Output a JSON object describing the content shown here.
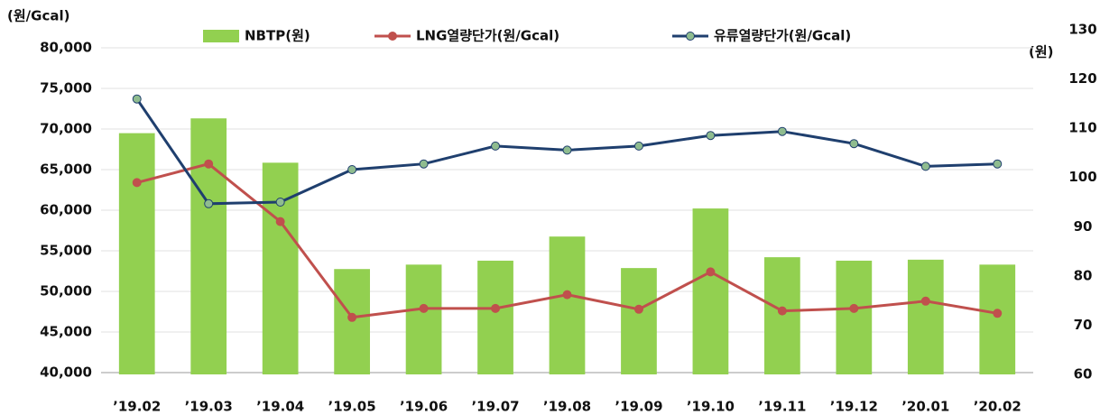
{
  "chart_data": {
    "type": "bar-line",
    "y_label": "(원/Gcal)",
    "y2_label": "(원)",
    "categories": [
      "’19.02",
      "’19.03",
      "’19.04",
      "’19.05",
      "’19.06",
      "’19.07",
      "’19.08",
      "’19.09",
      "’19.10",
      "’19.11",
      "’19.12",
      "’20.01",
      "’20.02"
    ],
    "series": [
      {
        "name": "NBTP(원)",
        "type": "bar",
        "axis": "y2",
        "color": "#92d050",
        "values": [
          109,
          112,
          103,
          81.4,
          82.3,
          83.1,
          88,
          81.6,
          93.7,
          83.8,
          83.1,
          83.3,
          82.3
        ]
      },
      {
        "name": "LNG열량단가(원/Gcal)",
        "type": "line",
        "color": "#c0504d",
        "values": [
          63400,
          65700,
          58600,
          46800,
          47900,
          47900,
          49600,
          47800,
          52400,
          47600,
          47900,
          48800,
          47300
        ]
      },
      {
        "name": "유류열량단가(원/Gcal)",
        "type": "line",
        "color": "#1f3f6e",
        "marker_color": "#8fbc8f",
        "values": [
          73700,
          60800,
          61000,
          65000,
          65700,
          67900,
          67400,
          67900,
          69200,
          69700,
          68200,
          65400,
          65700
        ]
      }
    ],
    "ylim": [
      40000,
      80000
    ],
    "yticks": [
      {
        "value": 40000,
        "label": "40,000"
      },
      {
        "value": 45000,
        "label": "45,000"
      },
      {
        "value": 50000,
        "label": "50,000"
      },
      {
        "value": 55000,
        "label": "55,000"
      },
      {
        "value": 60000,
        "label": "60,000"
      },
      {
        "value": 65000,
        "label": "65,000"
      },
      {
        "value": 70000,
        "label": "70,000"
      },
      {
        "value": 75000,
        "label": "75,000"
      },
      {
        "value": 80000,
        "label": "80,000"
      }
    ],
    "y2lim": [
      60,
      130
    ],
    "y2ticks": [
      60,
      70,
      80,
      90,
      100,
      110,
      120,
      130
    ],
    "grid": true,
    "legend": "top"
  }
}
